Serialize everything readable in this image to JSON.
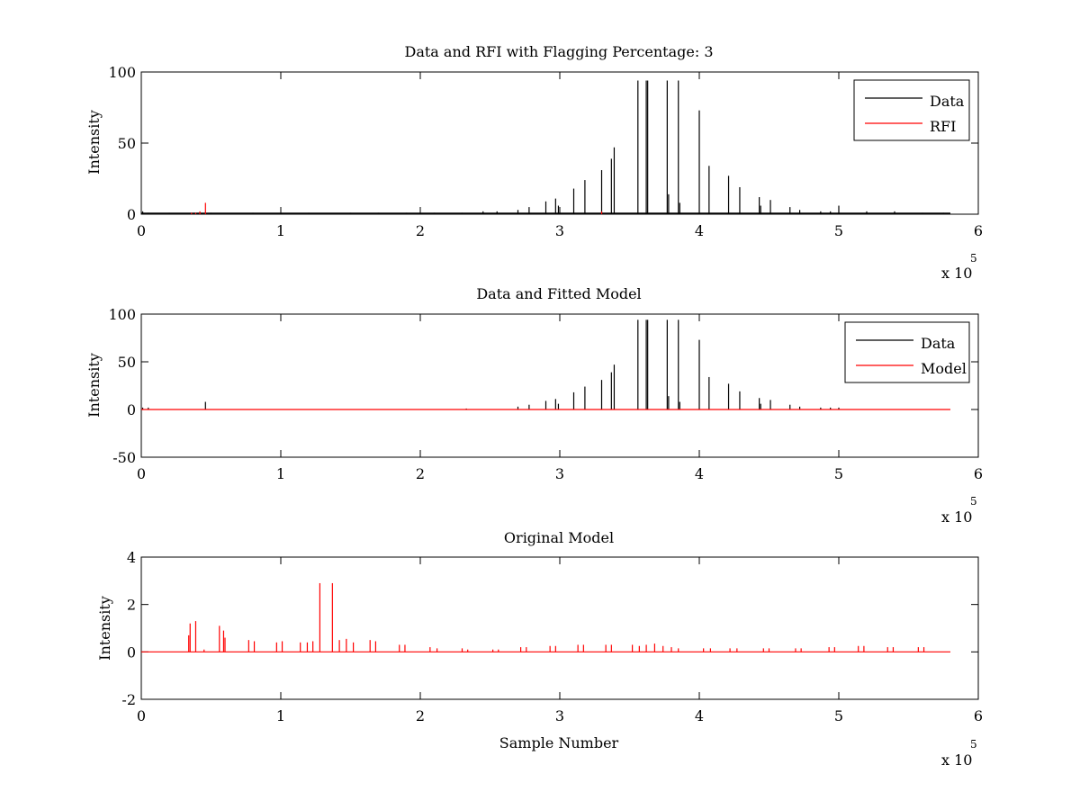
{
  "colors": {
    "data": "#000000",
    "rfi": "#ff0000",
    "model": "#ff0000",
    "background": "#ffffff"
  },
  "exponent_label": {
    "base": "x 10",
    "power": "5"
  },
  "chart_data": [
    {
      "type": "line",
      "title": "Data and RFI with Flagging Percentage: 3",
      "xlabel": "",
      "ylabel": "Intensity",
      "xlim": [
        0,
        6
      ],
      "ylim": [
        0,
        100
      ],
      "xticks": [
        "0",
        "1",
        "2",
        "3",
        "4",
        "5",
        "6"
      ],
      "yticks": [
        "0",
        "50",
        "100"
      ],
      "ytick_values": [
        0,
        50,
        100
      ],
      "x_multiplier": "x 10^5",
      "legend": {
        "position": "top-right",
        "entries": [
          "Data",
          "RFI"
        ]
      },
      "series": [
        {
          "name": "Data",
          "color": "#000000",
          "spikes": [
            [
              0.01,
              2
            ],
            [
              0.05,
              1
            ],
            [
              0.2,
              1
            ],
            [
              0.5,
              1
            ],
            [
              0.8,
              1
            ],
            [
              1.0,
              1
            ],
            [
              1.2,
              1
            ],
            [
              1.5,
              1
            ],
            [
              1.7,
              1
            ],
            [
              1.9,
              1
            ],
            [
              2.1,
              1
            ],
            [
              2.3,
              1
            ],
            [
              2.45,
              2
            ],
            [
              2.55,
              2
            ],
            [
              2.7,
              3
            ],
            [
              2.78,
              5
            ],
            [
              2.9,
              9
            ],
            [
              2.97,
              11
            ],
            [
              2.99,
              6
            ],
            [
              3.1,
              18
            ],
            [
              3.18,
              24
            ],
            [
              3.3,
              31
            ],
            [
              3.37,
              39
            ],
            [
              3.39,
              47
            ],
            [
              3.56,
              94
            ],
            [
              3.62,
              94
            ],
            [
              3.63,
              94
            ],
            [
              3.77,
              94
            ],
            [
              3.78,
              14
            ],
            [
              3.85,
              94
            ],
            [
              3.86,
              8
            ],
            [
              4.0,
              73
            ],
            [
              4.07,
              34
            ],
            [
              4.21,
              27
            ],
            [
              4.29,
              19
            ],
            [
              4.43,
              12
            ],
            [
              4.44,
              6
            ],
            [
              4.51,
              10
            ],
            [
              4.65,
              5
            ],
            [
              4.72,
              3
            ],
            [
              4.87,
              2
            ],
            [
              4.94,
              2
            ],
            [
              5.0,
              6
            ],
            [
              5.2,
              2
            ],
            [
              5.4,
              2
            ],
            [
              5.6,
              1
            ],
            [
              5.75,
              1
            ]
          ]
        },
        {
          "name": "RFI",
          "color": "#ff0000",
          "spikes": [
            [
              0.36,
              1
            ],
            [
              0.39,
              1
            ],
            [
              0.42,
              2
            ],
            [
              0.46,
              8
            ],
            [
              3.3,
              2
            ]
          ]
        }
      ]
    },
    {
      "type": "line",
      "title": "Data and Fitted Model",
      "xlabel": "",
      "ylabel": "Intensity",
      "xlim": [
        0,
        6
      ],
      "ylim": [
        -50,
        100
      ],
      "xticks": [
        "0",
        "1",
        "2",
        "3",
        "4",
        "5",
        "6"
      ],
      "yticks": [
        "-50",
        "0",
        "50",
        "100"
      ],
      "ytick_values": [
        -50,
        0,
        50,
        100
      ],
      "x_multiplier": "x 10^5",
      "legend": {
        "position": "top-right",
        "entries": [
          "Data",
          "Model"
        ]
      },
      "series": [
        {
          "name": "Data",
          "color": "#000000",
          "spikes": [
            [
              0.01,
              2
            ],
            [
              0.05,
              2
            ],
            [
              0.46,
              8
            ],
            [
              2.33,
              1
            ],
            [
              2.7,
              3
            ],
            [
              2.78,
              5
            ],
            [
              2.9,
              9
            ],
            [
              2.97,
              11
            ],
            [
              2.99,
              6
            ],
            [
              3.1,
              18
            ],
            [
              3.18,
              24
            ],
            [
              3.3,
              31
            ],
            [
              3.37,
              39
            ],
            [
              3.39,
              47
            ],
            [
              3.56,
              94
            ],
            [
              3.62,
              94
            ],
            [
              3.63,
              94
            ],
            [
              3.77,
              94
            ],
            [
              3.78,
              14
            ],
            [
              3.85,
              94
            ],
            [
              3.86,
              8
            ],
            [
              4.0,
              73
            ],
            [
              4.07,
              34
            ],
            [
              4.21,
              27
            ],
            [
              4.29,
              19
            ],
            [
              4.43,
              12
            ],
            [
              4.44,
              6
            ],
            [
              4.51,
              10
            ],
            [
              4.65,
              5
            ],
            [
              4.72,
              3
            ],
            [
              4.87,
              2
            ],
            [
              4.94,
              2
            ],
            [
              5.0,
              2
            ]
          ]
        },
        {
          "name": "Model",
          "color": "#ff0000",
          "baseline": 0,
          "x_range": [
            0,
            5.8
          ]
        }
      ]
    },
    {
      "type": "line",
      "title": "Original Model",
      "xlabel": "Sample Number",
      "ylabel": "Intensity",
      "xlim": [
        0,
        6
      ],
      "ylim": [
        -2,
        4
      ],
      "xticks": [
        "0",
        "1",
        "2",
        "3",
        "4",
        "5",
        "6"
      ],
      "yticks": [
        "-2",
        "0",
        "2",
        "4"
      ],
      "ytick_values": [
        -2,
        0,
        2,
        4
      ],
      "x_multiplier": "x 10^5",
      "series": [
        {
          "name": "Original Model",
          "color": "#ff0000",
          "x_range": [
            0,
            5.8
          ],
          "spikes": [
            [
              0.34,
              0.7
            ],
            [
              0.35,
              1.2
            ],
            [
              0.39,
              1.3
            ],
            [
              0.45,
              0.1
            ],
            [
              0.56,
              1.1
            ],
            [
              0.59,
              0.9
            ],
            [
              0.6,
              0.6
            ],
            [
              0.77,
              0.5
            ],
            [
              0.81,
              0.45
            ],
            [
              0.97,
              0.4
            ],
            [
              1.01,
              0.45
            ],
            [
              1.14,
              0.4
            ],
            [
              1.19,
              0.4
            ],
            [
              1.23,
              0.45
            ],
            [
              1.28,
              2.9
            ],
            [
              1.37,
              2.9
            ],
            [
              1.42,
              0.5
            ],
            [
              1.47,
              0.55
            ],
            [
              1.52,
              0.4
            ],
            [
              1.64,
              0.5
            ],
            [
              1.68,
              0.45
            ],
            [
              1.85,
              0.3
            ],
            [
              1.89,
              0.3
            ],
            [
              2.07,
              0.2
            ],
            [
              2.12,
              0.15
            ],
            [
              2.3,
              0.15
            ],
            [
              2.34,
              0.1
            ],
            [
              2.52,
              0.1
            ],
            [
              2.56,
              0.1
            ],
            [
              2.72,
              0.2
            ],
            [
              2.76,
              0.2
            ],
            [
              2.93,
              0.25
            ],
            [
              2.97,
              0.25
            ],
            [
              3.13,
              0.3
            ],
            [
              3.17,
              0.3
            ],
            [
              3.33,
              0.3
            ],
            [
              3.37,
              0.3
            ],
            [
              3.52,
              0.3
            ],
            [
              3.57,
              0.25
            ],
            [
              3.62,
              0.3
            ],
            [
              3.68,
              0.35
            ],
            [
              3.74,
              0.25
            ],
            [
              3.8,
              0.2
            ],
            [
              3.85,
              0.15
            ],
            [
              4.03,
              0.15
            ],
            [
              4.08,
              0.15
            ],
            [
              4.22,
              0.15
            ],
            [
              4.27,
              0.15
            ],
            [
              4.46,
              0.15
            ],
            [
              4.5,
              0.15
            ],
            [
              4.69,
              0.15
            ],
            [
              4.73,
              0.15
            ],
            [
              4.93,
              0.2
            ],
            [
              4.97,
              0.2
            ],
            [
              5.14,
              0.25
            ],
            [
              5.18,
              0.25
            ],
            [
              5.35,
              0.2
            ],
            [
              5.39,
              0.2
            ],
            [
              5.57,
              0.2
            ],
            [
              5.61,
              0.2
            ]
          ]
        }
      ]
    }
  ]
}
